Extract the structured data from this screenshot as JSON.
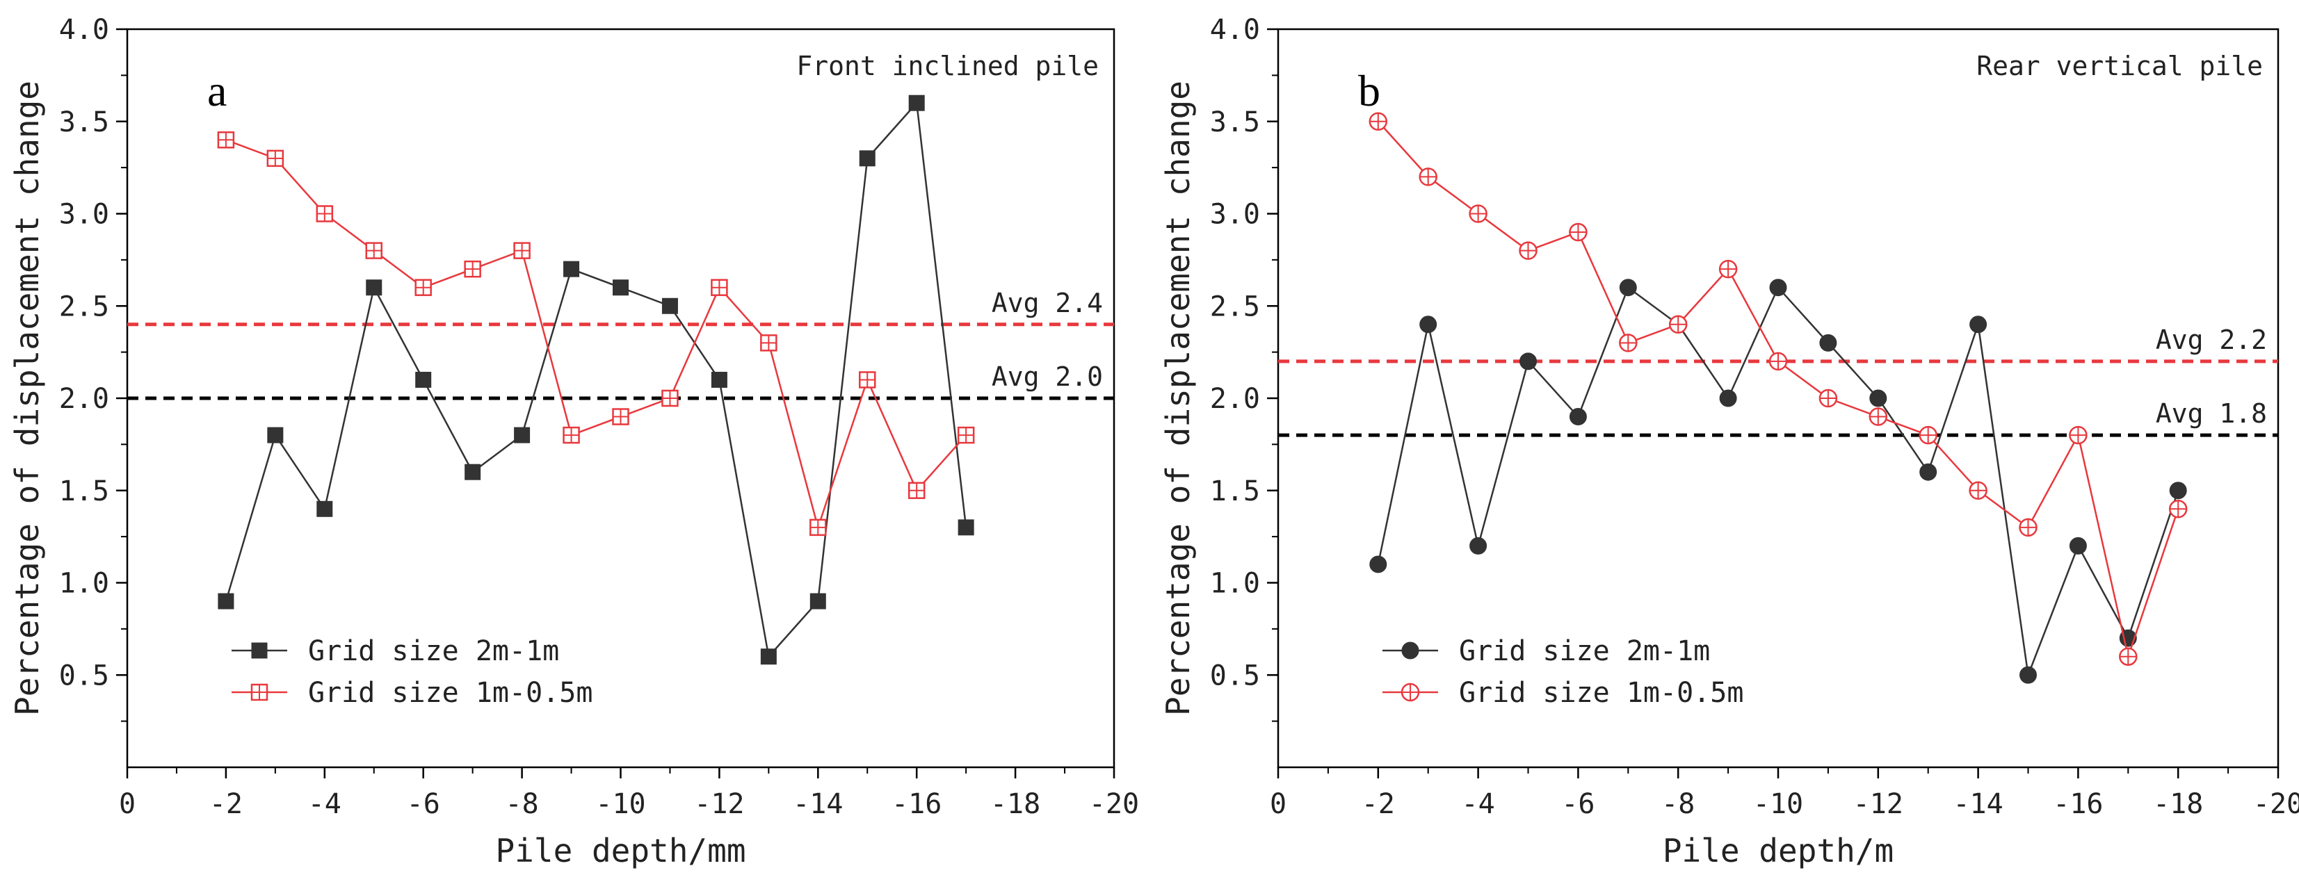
{
  "colors": {
    "series_a": "#333333",
    "series_b": "#e8383d",
    "avg_black": "#000000",
    "avg_red": "#e8383d"
  },
  "chart_data": [
    {
      "type": "line",
      "panel_label": "a",
      "title": "Front inclined pile",
      "xlabel": "Pile depth/mm",
      "ylabel": "Percentage of displacement change",
      "xlim": [
        0,
        -20
      ],
      "ylim": [
        0.0,
        4.0
      ],
      "x_ticks": [
        0,
        -2,
        -4,
        -6,
        -8,
        -10,
        -12,
        -14,
        -16,
        -18,
        -20
      ],
      "y_ticks": [
        0.5,
        1.0,
        1.5,
        2.0,
        2.5,
        3.0,
        3.5,
        4.0
      ],
      "grid": false,
      "legend_position": "bottom-left",
      "series": [
        {
          "name": "Grid size 2m-1m",
          "marker": "square",
          "x": [
            -2,
            -3,
            -4,
            -5,
            -6,
            -7,
            -8,
            -9,
            -10,
            -11,
            -12,
            -13,
            -14,
            -15,
            -16,
            -17
          ],
          "values": [
            0.9,
            1.8,
            1.4,
            2.6,
            2.1,
            1.6,
            1.8,
            2.7,
            2.6,
            2.5,
            2.1,
            0.6,
            0.9,
            3.3,
            3.6,
            1.3
          ]
        },
        {
          "name": "Grid size 1m-0.5m",
          "marker": "square-open-cross",
          "x": [
            -2,
            -3,
            -4,
            -5,
            -6,
            -7,
            -8,
            -9,
            -10,
            -11,
            -12,
            -13,
            -14,
            -15,
            -16,
            -17
          ],
          "values": [
            3.4,
            3.3,
            3.0,
            2.8,
            2.6,
            2.7,
            2.8,
            1.8,
            1.9,
            2.0,
            2.6,
            2.3,
            1.3,
            2.1,
            1.5,
            1.8
          ]
        }
      ],
      "avg_lines": [
        {
          "label": "Avg 2.4",
          "value": 2.4,
          "color": "#e8383d"
        },
        {
          "label": "Avg 2.0",
          "value": 2.0,
          "color": "#000000"
        }
      ]
    },
    {
      "type": "line",
      "panel_label": "b",
      "title": "Rear vertical pile",
      "xlabel": "Pile depth/m",
      "ylabel": "Percentage of displacement change",
      "xlim": [
        0,
        -20
      ],
      "ylim": [
        0.0,
        4.0
      ],
      "x_ticks": [
        0,
        -2,
        -4,
        -6,
        -8,
        -10,
        -12,
        -14,
        -16,
        -18,
        -20
      ],
      "y_ticks": [
        0.5,
        1.0,
        1.5,
        2.0,
        2.5,
        3.0,
        3.5,
        4.0
      ],
      "grid": false,
      "legend_position": "bottom-left",
      "series": [
        {
          "name": "Grid size 2m-1m",
          "marker": "circle",
          "x": [
            -2,
            -3,
            -4,
            -5,
            -6,
            -7,
            -8,
            -9,
            -10,
            -11,
            -12,
            -13,
            -14,
            -15,
            -16,
            -17,
            -18
          ],
          "values": [
            1.1,
            2.4,
            1.2,
            2.2,
            1.9,
            2.6,
            2.4,
            2.0,
            2.6,
            2.3,
            2.0,
            1.6,
            2.4,
            0.5,
            1.2,
            0.7,
            1.5
          ]
        },
        {
          "name": "Grid size 1m-0.5m",
          "marker": "circle-open-cross",
          "x": [
            -2,
            -3,
            -4,
            -5,
            -6,
            -7,
            -8,
            -9,
            -10,
            -11,
            -12,
            -13,
            -14,
            -15,
            -16,
            -17,
            -18
          ],
          "values": [
            3.5,
            3.2,
            3.0,
            2.8,
            2.9,
            2.3,
            2.4,
            2.7,
            2.2,
            2.0,
            1.9,
            1.8,
            1.5,
            1.3,
            1.8,
            0.6,
            1.4
          ]
        }
      ],
      "avg_lines": [
        {
          "label": "Avg 2.2",
          "value": 2.2,
          "color": "#e8383d"
        },
        {
          "label": "Avg 1.8",
          "value": 1.8,
          "color": "#000000"
        }
      ]
    }
  ]
}
